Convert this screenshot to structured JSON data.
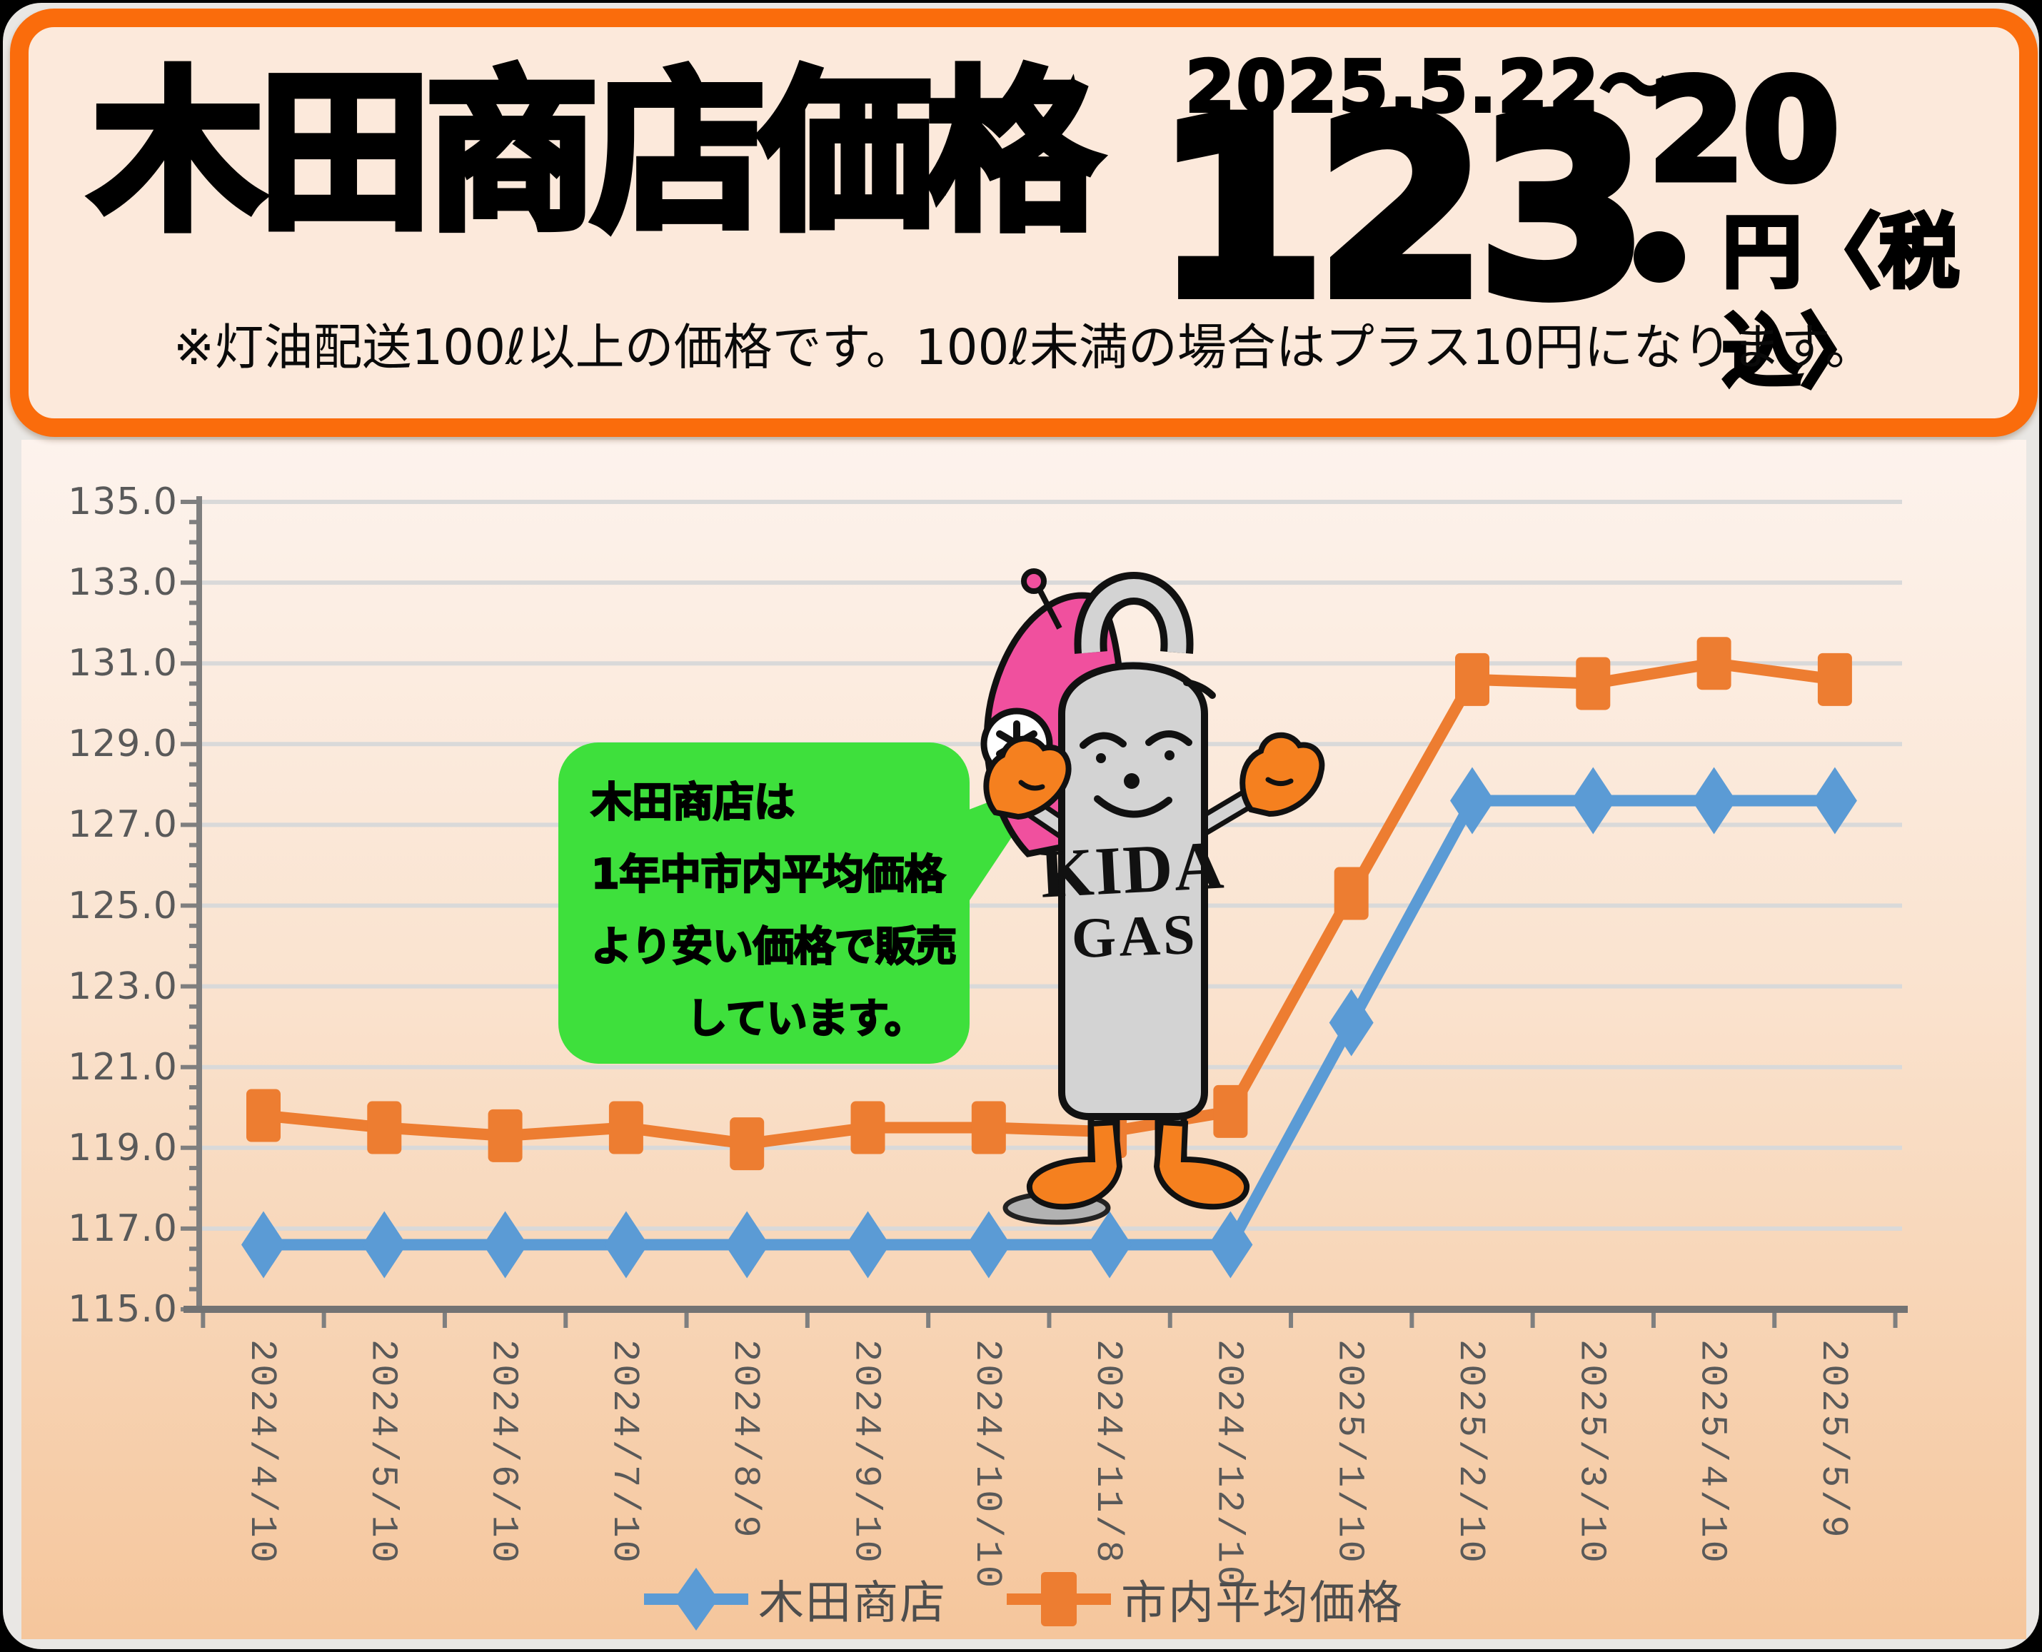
{
  "header": {
    "date": "2025.5.22～",
    "title": "木田商店価格",
    "price_integer": "123",
    "price_fraction": "20",
    "price_unit": "円〈税込〉",
    "note": "※灯油配送100ℓ以上の価格です。100ℓ未満の場合はプラス10円になります。"
  },
  "speech_bubble": {
    "lines": [
      "木田商店は",
      "1年中市内平均価格",
      "より安い価格で販売",
      "しています。"
    ]
  },
  "mascot": {
    "body_line1": "KIDA",
    "body_line2": "GAS"
  },
  "chart_data": {
    "type": "line",
    "categories": [
      "2024/4/10",
      "2024/5/10",
      "2024/6/10",
      "2024/7/10",
      "2024/8/9",
      "2024/9/10",
      "2024/10/10",
      "2024/11/8",
      "2024/12/10",
      "2025/1/10",
      "2025/2/10",
      "2025/3/10",
      "2025/4/10",
      "2025/5/9"
    ],
    "series": [
      {
        "name": "木田商店",
        "marker": "diamond",
        "color": "#5b9bd5",
        "values": [
          116.6,
          116.6,
          116.6,
          116.6,
          116.6,
          116.6,
          116.6,
          116.6,
          116.6,
          122.1,
          127.6,
          127.6,
          127.6,
          127.6
        ]
      },
      {
        "name": "市内平均価格",
        "marker": "square",
        "color": "#ed7d31",
        "values": [
          119.8,
          119.5,
          119.3,
          119.5,
          119.1,
          119.5,
          119.5,
          119.4,
          119.9,
          125.3,
          130.6,
          130.5,
          131.0,
          130.6
        ]
      }
    ],
    "ylim": [
      115.0,
      135.0
    ],
    "ytick_step": 2.0,
    "ytick_labels": [
      "135.0",
      "133.0",
      "131.0",
      "129.0",
      "127.0",
      "125.0",
      "123.0",
      "121.0",
      "119.0",
      "117.0",
      "115.0"
    ],
    "grid": true,
    "legend_position": "bottom",
    "xlabel_rotation": 90
  },
  "colors": {
    "frame": "#fa6c0c",
    "header_bg": "#fce9db",
    "panel_top": "#fdf3ed",
    "panel_bottom": "#f5c69c",
    "grid": "#d9d9d9",
    "axis": "#7f7f7f",
    "label": "#595959",
    "bubble": "#3ee03c",
    "pink": "#f0509e",
    "mitten": "#f5801f",
    "body": "#d3d3d3"
  }
}
